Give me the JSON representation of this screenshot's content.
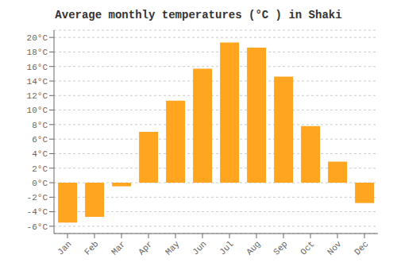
{
  "chart_data": {
    "type": "bar",
    "title": "Average monthly temperatures (°C ) in Shaki",
    "categories": [
      "Jan",
      "Feb",
      "Mar",
      "Apr",
      "May",
      "Jun",
      "Jul",
      "Aug",
      "Sep",
      "Oct",
      "Nov",
      "Dec"
    ],
    "values": [
      -5.5,
      -4.7,
      -0.5,
      7.0,
      11.3,
      15.7,
      19.3,
      18.6,
      14.6,
      7.8,
      2.9,
      -2.8
    ],
    "color": "#FFA520",
    "ylim": [
      -7,
      21
    ],
    "yticks": [
      {
        "value": -6,
        "label": "-6°C"
      },
      {
        "value": -4,
        "label": "-4°C"
      },
      {
        "value": -2,
        "label": "-2°C"
      },
      {
        "value": 0,
        "label": "0°C"
      },
      {
        "value": 2,
        "label": "2°C"
      },
      {
        "value": 4,
        "label": "4°C"
      },
      {
        "value": 6,
        "label": "6°C"
      },
      {
        "value": 8,
        "label": "8°C"
      },
      {
        "value": 10,
        "label": "10°C"
      },
      {
        "value": 12,
        "label": "12°C"
      },
      {
        "value": 14,
        "label": "14°C"
      },
      {
        "value": 16,
        "label": "16°C"
      },
      {
        "value": 18,
        "label": "18°C"
      },
      {
        "value": 20,
        "label": "20°C"
      }
    ],
    "grid": true
  }
}
